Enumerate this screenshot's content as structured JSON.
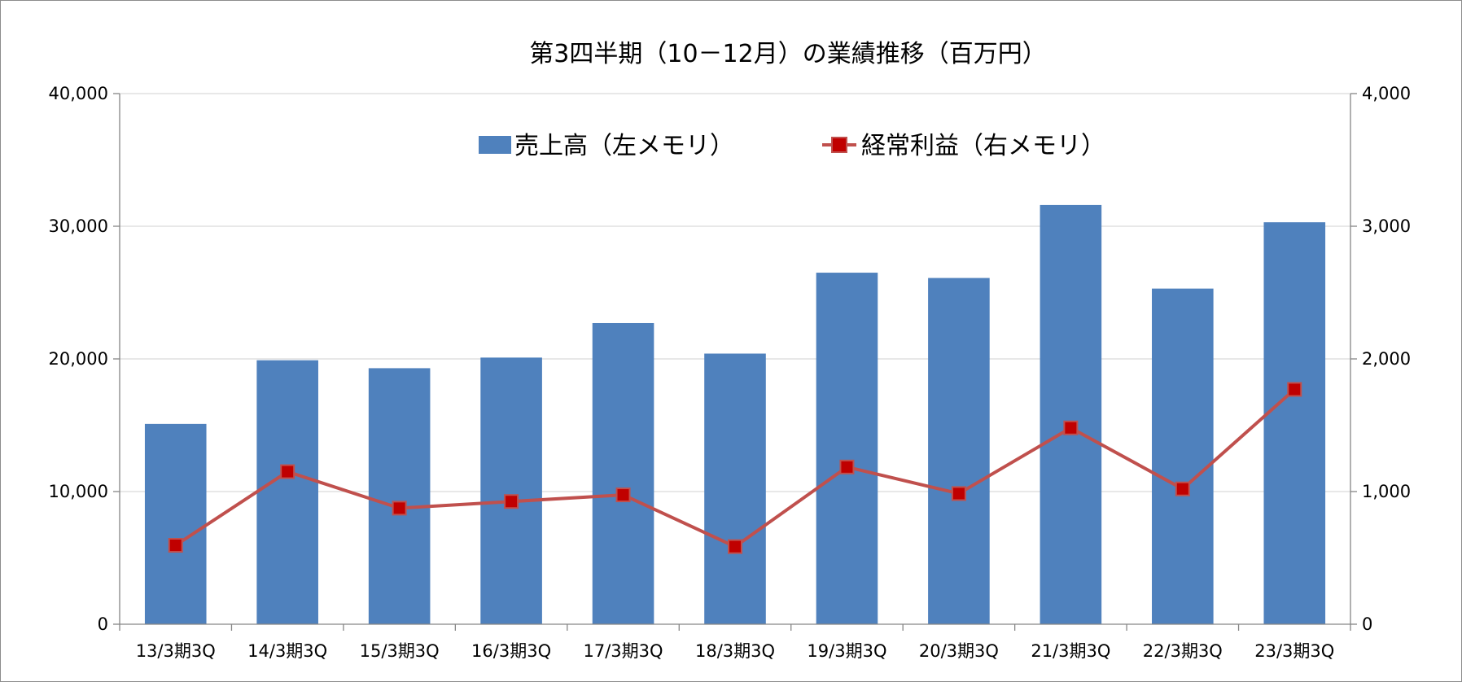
{
  "chart_data": {
    "type": "bar",
    "title": "第3四半期（10－12月）の業績推移（百万円）",
    "categories": [
      "13/3期3Q",
      "14/3期3Q",
      "15/3期3Q",
      "16/3期3Q",
      "17/3期3Q",
      "18/3期3Q",
      "19/3期3Q",
      "20/3期3Q",
      "21/3期3Q",
      "22/3期3Q",
      "23/3期3Q"
    ],
    "series": [
      {
        "name": "売上高（左メモリ）",
        "type": "bar",
        "axis": "left",
        "color": "#4f81bd",
        "values": [
          15100,
          19900,
          19300,
          20100,
          22700,
          20400,
          26500,
          26100,
          31600,
          25300,
          30300
        ]
      },
      {
        "name": "経常利益（右メモリ）",
        "type": "line",
        "axis": "right",
        "color": "#c0504d",
        "marker_color": "#c00000",
        "values": [
          595,
          1150,
          875,
          925,
          975,
          585,
          1185,
          985,
          1480,
          1020,
          1770
        ]
      }
    ],
    "left_axis": {
      "ylim": [
        0,
        40000
      ],
      "ticks": [
        "0",
        "10,000",
        "20,000",
        "30,000",
        "40,000"
      ]
    },
    "right_axis": {
      "ylim": [
        0,
        4000
      ],
      "ticks": [
        "0",
        "1,000",
        "2,000",
        "3,000",
        "4,000"
      ]
    },
    "grid": true,
    "legend_position": "top-center"
  }
}
